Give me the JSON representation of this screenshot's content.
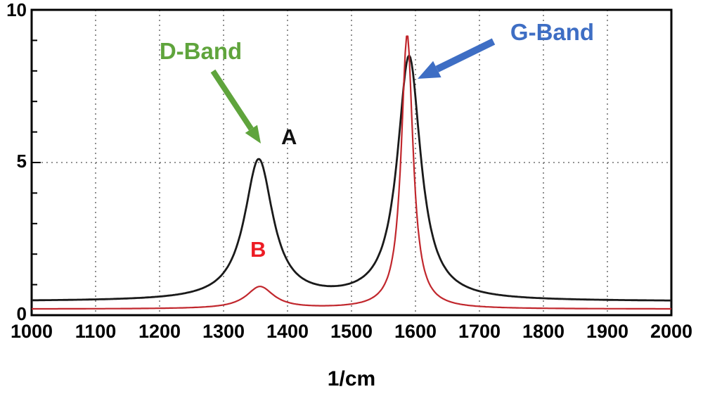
{
  "chart_data": {
    "type": "line",
    "xlabel": "1/cm",
    "ylabel": "",
    "xlim": [
      1000,
      2000
    ],
    "ylim": [
      0,
      10
    ],
    "x_ticks": [
      1000,
      1100,
      1200,
      1300,
      1400,
      1500,
      1600,
      1700,
      1800,
      1900,
      2000
    ],
    "y_ticks": [
      0,
      5,
      10
    ],
    "grid": true,
    "legend": "none",
    "series": [
      {
        "name": "A",
        "color": "#1a1a1a",
        "baseline": 0.45,
        "peaks": [
          {
            "band": "D-Band",
            "center": 1355,
            "height": 4.6,
            "width": 27,
            "peak_value": 5.1
          },
          {
            "band": "G-Band",
            "center": 1590,
            "height": 8.0,
            "width": 22,
            "peak_value": 8.5
          }
        ]
      },
      {
        "name": "B",
        "color": "#c1272d",
        "baseline": 0.2,
        "peaks": [
          {
            "band": "D-Band",
            "center": 1357,
            "height": 0.72,
            "width": 26,
            "peak_value": 0.9
          },
          {
            "band": "G-Band",
            "center": 1587,
            "height": 9.0,
            "width": 11,
            "peak_value": 9.2
          }
        ]
      }
    ],
    "annotations": [
      {
        "text": "D-Band",
        "color": "#5fa43c",
        "arrow": true
      },
      {
        "text": "G-Band",
        "color": "#3e6ec4",
        "arrow": true
      },
      {
        "text": "A",
        "color": "#111111",
        "arrow": false
      },
      {
        "text": "B",
        "color": "#ed1c24",
        "arrow": false
      }
    ]
  }
}
